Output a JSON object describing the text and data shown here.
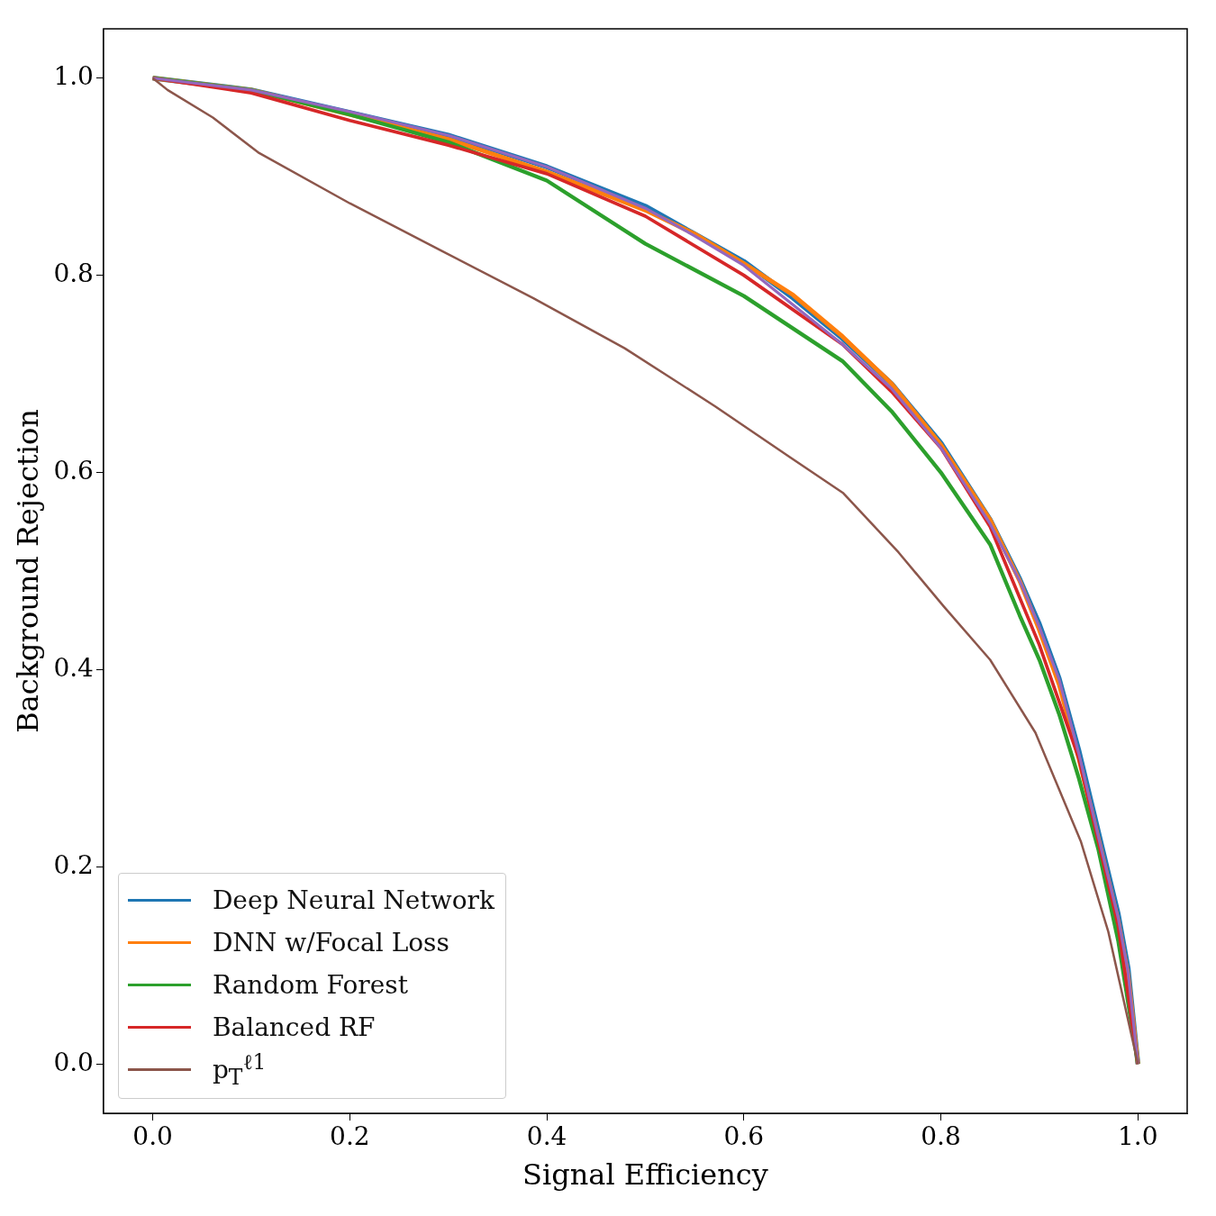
{
  "chart_data": {
    "type": "line",
    "xlabel": "Signal Efficiency",
    "ylabel": "Background Rejection",
    "xlim": [
      -0.05,
      1.05
    ],
    "ylim": [
      -0.05,
      1.05
    ],
    "xticks": [
      {
        "value": 0,
        "label": "0.0"
      },
      0.2,
      0.4,
      0.6,
      0.8,
      {
        "value": 1,
        "label": "1.0"
      }
    ],
    "yticks": [
      {
        "value": 0,
        "label": "0.0"
      },
      0.2,
      0.4,
      0.6,
      0.8,
      {
        "value": 1,
        "label": "1.0"
      }
    ],
    "grid": false,
    "legend": "bottom left",
    "marker": "none",
    "line_style": "solid",
    "series": [
      {
        "name": "Deep Neural Network",
        "color": "#1f77b4",
        "x": [
          0,
          0.1,
          0.2,
          0.3,
          0.4,
          0.5,
          0.55,
          0.6,
          0.65,
          0.7,
          0.75,
          0.8,
          0.85,
          0.88,
          0.9,
          0.92,
          0.94,
          0.96,
          0.98,
          0.99,
          1.0
        ],
        "values": [
          1.0,
          0.988,
          0.965,
          0.942,
          0.91,
          0.87,
          0.842,
          0.814,
          0.777,
          0.736,
          0.69,
          0.63,
          0.552,
          0.492,
          0.446,
          0.391,
          0.318,
          0.235,
          0.152,
          0.097,
          0.0
        ]
      },
      {
        "name": "DNN w/Focal Loss",
        "color": "#ff7f0e",
        "x": [
          0,
          0.1,
          0.2,
          0.3,
          0.4,
          0.5,
          0.55,
          0.6,
          0.65,
          0.7,
          0.75,
          0.8,
          0.85,
          0.88,
          0.9,
          0.92,
          0.94,
          0.96,
          0.98,
          0.99,
          1.0
        ],
        "values": [
          1.0,
          0.988,
          0.963,
          0.938,
          0.905,
          0.866,
          0.842,
          0.812,
          0.78,
          0.738,
          0.69,
          0.628,
          0.552,
          0.49,
          0.44,
          0.385,
          0.31,
          0.228,
          0.145,
          0.09,
          0.0
        ]
      },
      {
        "name": "Random Forest",
        "color": "#2ca02c",
        "x": [
          0,
          0.1,
          0.2,
          0.3,
          0.4,
          0.5,
          0.6,
          0.7,
          0.75,
          0.8,
          0.85,
          0.88,
          0.9,
          0.92,
          0.94,
          0.96,
          0.98,
          1.0
        ],
        "values": [
          1.0,
          0.988,
          0.963,
          0.935,
          0.896,
          0.832,
          0.779,
          0.713,
          0.662,
          0.6,
          0.527,
          0.455,
          0.41,
          0.355,
          0.29,
          0.217,
          0.125,
          0.0
        ]
      },
      {
        "name": "Balanced RF",
        "color": "#d62728",
        "x": [
          0,
          0.1,
          0.2,
          0.3,
          0.4,
          0.5,
          0.6,
          0.7,
          0.75,
          0.8,
          0.85,
          0.9,
          0.94,
          0.98,
          1.0
        ],
        "values": [
          1.0,
          0.985,
          0.957,
          0.932,
          0.903,
          0.86,
          0.8,
          0.73,
          0.682,
          0.625,
          0.545,
          0.425,
          0.31,
          0.14,
          0.0
        ]
      },
      {
        "color": "#9467bd",
        "x": [
          0,
          0.1,
          0.2,
          0.3,
          0.4,
          0.5,
          0.55,
          0.6,
          0.65,
          0.7,
          0.75,
          0.8,
          0.85,
          0.88,
          0.9,
          0.92,
          0.94,
          0.96,
          0.98,
          0.99,
          1.0
        ],
        "values": [
          1.0,
          0.988,
          0.966,
          0.942,
          0.91,
          0.868,
          0.84,
          0.81,
          0.77,
          0.73,
          0.685,
          0.625,
          0.548,
          0.49,
          0.443,
          0.39,
          0.315,
          0.23,
          0.148,
          0.093,
          0.0
        ]
      },
      {
        "name": "p$_{T}$$^{ℓ1}$",
        "color": "#8c564b",
        "x": [
          0,
          0.015,
          0.061,
          0.108,
          0.2,
          0.293,
          0.386,
          0.479,
          0.571,
          0.646,
          0.701,
          0.757,
          0.803,
          0.85,
          0.896,
          0.942,
          0.97,
          1.0
        ],
        "values": [
          1.0,
          0.988,
          0.96,
          0.924,
          0.873,
          0.825,
          0.777,
          0.726,
          0.667,
          0.616,
          0.579,
          0.519,
          0.464,
          0.41,
          0.336,
          0.226,
          0.134,
          0.0
        ]
      }
    ]
  }
}
